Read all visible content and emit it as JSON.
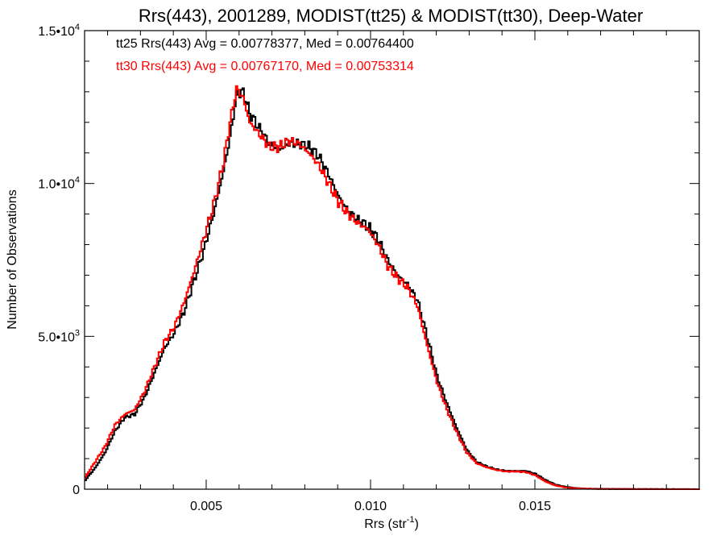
{
  "chart_data": {
    "type": "line",
    "title": "Rrs(443), 2001289, MODIST(tt25) & MODIST(tt30), Deep-Water",
    "xlabel": "Rrs (str",
    "xlabel_exp": "-1",
    "xlabel_tail": ")",
    "ylabel": "Number of Observations",
    "xlim": [
      0.0013,
      0.02
    ],
    "ylim": [
      0,
      15000
    ],
    "grid": false,
    "legend_position": "top-left",
    "x_ticks": [
      {
        "value": 0.005,
        "label": "0.005"
      },
      {
        "value": 0.01,
        "label": "0.010"
      },
      {
        "value": 0.015,
        "label": "0.015"
      }
    ],
    "y_ticks": [
      {
        "value": 0,
        "mant": "0",
        "exp": ""
      },
      {
        "value": 5000,
        "mant": "5.0•10",
        "exp": "3"
      },
      {
        "value": 10000,
        "mant": "1.0•10",
        "exp": "4"
      },
      {
        "value": 15000,
        "mant": "1.5•10",
        "exp": "4"
      }
    ],
    "series": [
      {
        "name": "tt25",
        "color": "#000000",
        "legend": "tt25 Rrs(443) Avg = 0.00778377, Med = 0.00764400",
        "points": [
          [
            0.0013,
            300
          ],
          [
            0.0016,
            700
          ],
          [
            0.0019,
            1200
          ],
          [
            0.0022,
            1900
          ],
          [
            0.0025,
            2350
          ],
          [
            0.0028,
            2450
          ],
          [
            0.0031,
            3000
          ],
          [
            0.0034,
            3800
          ],
          [
            0.0037,
            4600
          ],
          [
            0.004,
            5100
          ],
          [
            0.0043,
            5800
          ],
          [
            0.0046,
            6800
          ],
          [
            0.0049,
            7800
          ],
          [
            0.0052,
            9000
          ],
          [
            0.0055,
            10400
          ],
          [
            0.0057,
            11500
          ],
          [
            0.0059,
            12900
          ],
          [
            0.0061,
            13000
          ],
          [
            0.0063,
            12300
          ],
          [
            0.0066,
            11800
          ],
          [
            0.0069,
            11300
          ],
          [
            0.0072,
            11100
          ],
          [
            0.0075,
            11300
          ],
          [
            0.0078,
            11300
          ],
          [
            0.0081,
            11200
          ],
          [
            0.0084,
            10900
          ],
          [
            0.0087,
            10300
          ],
          [
            0.009,
            9600
          ],
          [
            0.0093,
            9100
          ],
          [
            0.0096,
            8800
          ],
          [
            0.0099,
            8600
          ],
          [
            0.0102,
            8200
          ],
          [
            0.0105,
            7500
          ],
          [
            0.0108,
            7000
          ],
          [
            0.0111,
            6700
          ],
          [
            0.0114,
            6200
          ],
          [
            0.0117,
            5000
          ],
          [
            0.012,
            3700
          ],
          [
            0.0123,
            2800
          ],
          [
            0.0126,
            2000
          ],
          [
            0.0129,
            1300
          ],
          [
            0.0132,
            900
          ],
          [
            0.0135,
            750
          ],
          [
            0.0138,
            650
          ],
          [
            0.0141,
            600
          ],
          [
            0.0144,
            600
          ],
          [
            0.0147,
            600
          ],
          [
            0.015,
            500
          ],
          [
            0.0153,
            300
          ],
          [
            0.0156,
            150
          ],
          [
            0.0159,
            80
          ],
          [
            0.0162,
            40
          ],
          [
            0.0165,
            20
          ],
          [
            0.017,
            10
          ],
          [
            0.018,
            5
          ],
          [
            0.019,
            2
          ],
          [
            0.02,
            0
          ]
        ]
      },
      {
        "name": "tt30",
        "color": "#ff0000",
        "legend": "tt30 Rrs(443) Avg = 0.00767170, Med = 0.00753314",
        "points": [
          [
            0.0013,
            400
          ],
          [
            0.0016,
            900
          ],
          [
            0.0019,
            1400
          ],
          [
            0.0022,
            2100
          ],
          [
            0.0025,
            2450
          ],
          [
            0.0028,
            2600
          ],
          [
            0.0031,
            3200
          ],
          [
            0.0034,
            4000
          ],
          [
            0.0037,
            4800
          ],
          [
            0.004,
            5300
          ],
          [
            0.0043,
            6100
          ],
          [
            0.0046,
            7100
          ],
          [
            0.0049,
            8200
          ],
          [
            0.0052,
            9300
          ],
          [
            0.0055,
            10700
          ],
          [
            0.0057,
            12000
          ],
          [
            0.0059,
            13100
          ],
          [
            0.0061,
            12800
          ],
          [
            0.0063,
            12000
          ],
          [
            0.0066,
            11600
          ],
          [
            0.0069,
            11200
          ],
          [
            0.0072,
            11200
          ],
          [
            0.0075,
            11400
          ],
          [
            0.0078,
            11300
          ],
          [
            0.0081,
            11000
          ],
          [
            0.0084,
            10600
          ],
          [
            0.0087,
            10000
          ],
          [
            0.009,
            9400
          ],
          [
            0.0093,
            9000
          ],
          [
            0.0096,
            8700
          ],
          [
            0.0099,
            8500
          ],
          [
            0.0102,
            8000
          ],
          [
            0.0105,
            7300
          ],
          [
            0.0108,
            6900
          ],
          [
            0.0111,
            6600
          ],
          [
            0.0114,
            6000
          ],
          [
            0.0117,
            4700
          ],
          [
            0.012,
            3500
          ],
          [
            0.0123,
            2600
          ],
          [
            0.0126,
            1850
          ],
          [
            0.0129,
            1200
          ],
          [
            0.0132,
            850
          ],
          [
            0.0135,
            720
          ],
          [
            0.0138,
            630
          ],
          [
            0.0141,
            580
          ],
          [
            0.0144,
            580
          ],
          [
            0.0147,
            560
          ],
          [
            0.015,
            450
          ],
          [
            0.0153,
            250
          ],
          [
            0.0156,
            120
          ],
          [
            0.0159,
            60
          ],
          [
            0.0162,
            30
          ],
          [
            0.0165,
            15
          ],
          [
            0.017,
            8
          ],
          [
            0.018,
            4
          ],
          [
            0.019,
            1
          ],
          [
            0.02,
            0
          ]
        ]
      }
    ]
  }
}
